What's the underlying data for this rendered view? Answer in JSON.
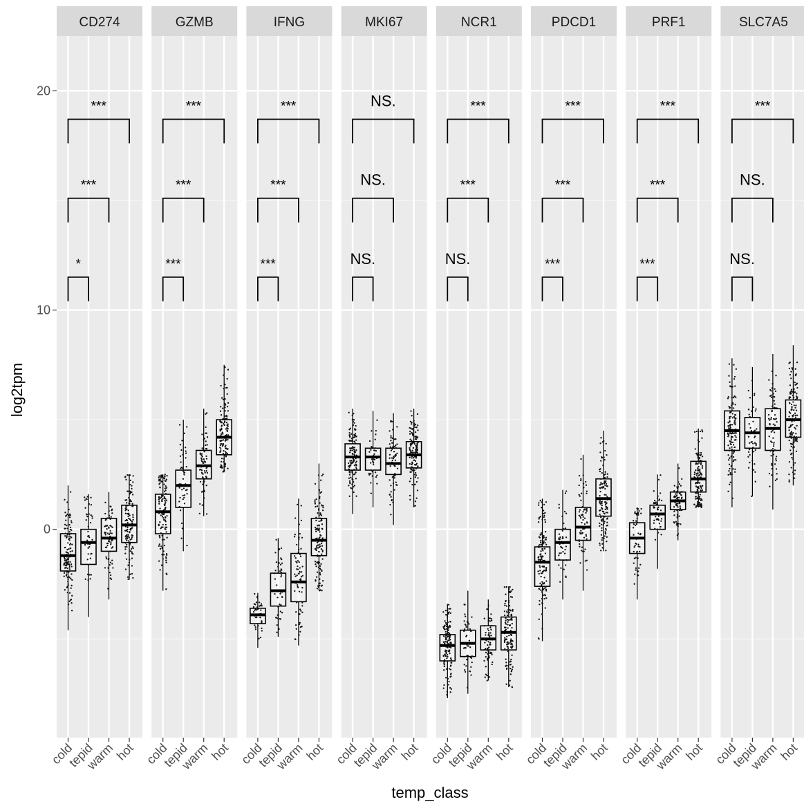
{
  "chart_data": {
    "type": "boxplot",
    "xlabel": "temp_class",
    "ylabel": "log2tpm",
    "ylim": [
      -9.5,
      22.5
    ],
    "y_ticks": [
      0,
      10,
      20
    ],
    "y_tick_labels": [
      "0",
      "10",
      "20"
    ],
    "categories": [
      "cold",
      "tepid",
      "warm",
      "hot"
    ],
    "grid": true,
    "panels": [
      {
        "gene": "CD274",
        "boxes": [
          {
            "group": "cold",
            "q1": -1.9,
            "median": -1.2,
            "q3": -0.2,
            "whisker_low": -4.6,
            "whisker_high": 2.0,
            "n": 130
          },
          {
            "group": "tepid",
            "q1": -1.6,
            "median": -0.6,
            "q3": 0.0,
            "whisker_low": -4.0,
            "whisker_high": 1.6,
            "n": 45
          },
          {
            "group": "warm",
            "q1": -1.0,
            "median": -0.4,
            "q3": 0.5,
            "whisker_low": -3.2,
            "whisker_high": 1.7,
            "n": 70
          },
          {
            "group": "hot",
            "q1": -0.6,
            "median": 0.2,
            "q3": 1.1,
            "whisker_low": -2.3,
            "whisker_high": 2.5,
            "n": 130
          }
        ],
        "comparisons": [
          {
            "groups": [
              "cold",
              "tepid"
            ],
            "label": "*"
          },
          {
            "groups": [
              "cold",
              "warm"
            ],
            "label": "***"
          },
          {
            "groups": [
              "cold",
              "hot"
            ],
            "label": "***"
          }
        ]
      },
      {
        "gene": "GZMB",
        "boxes": [
          {
            "group": "cold",
            "q1": -0.2,
            "median": 0.8,
            "q3": 1.6,
            "whisker_low": -2.8,
            "whisker_high": 2.5,
            "n": 130
          },
          {
            "group": "tepid",
            "q1": 1.0,
            "median": 2.0,
            "q3": 2.7,
            "whisker_low": -1.0,
            "whisker_high": 5.0,
            "n": 45
          },
          {
            "group": "warm",
            "q1": 2.3,
            "median": 2.9,
            "q3": 3.6,
            "whisker_low": 0.6,
            "whisker_high": 5.5,
            "n": 70
          },
          {
            "group": "hot",
            "q1": 3.4,
            "median": 4.2,
            "q3": 5.0,
            "whisker_low": 2.6,
            "whisker_high": 7.5,
            "n": 130
          }
        ],
        "comparisons": [
          {
            "groups": [
              "cold",
              "tepid"
            ],
            "label": "***"
          },
          {
            "groups": [
              "cold",
              "warm"
            ],
            "label": "***"
          },
          {
            "groups": [
              "cold",
              "hot"
            ],
            "label": "***"
          }
        ]
      },
      {
        "gene": "IFNG",
        "boxes": [
          {
            "group": "cold",
            "q1": -4.3,
            "median": -3.9,
            "q3": -3.6,
            "whisker_low": -5.4,
            "whisker_high": -2.9,
            "n": 40
          },
          {
            "group": "tepid",
            "q1": -3.5,
            "median": -2.8,
            "q3": -2.0,
            "whisker_low": -4.9,
            "whisker_high": -0.4,
            "n": 45
          },
          {
            "group": "warm",
            "q1": -3.3,
            "median": -2.4,
            "q3": -1.1,
            "whisker_low": -5.3,
            "whisker_high": 1.4,
            "n": 70
          },
          {
            "group": "hot",
            "q1": -1.2,
            "median": -0.5,
            "q3": 0.5,
            "whisker_low": -2.8,
            "whisker_high": 3.0,
            "n": 130
          }
        ],
        "comparisons": [
          {
            "groups": [
              "cold",
              "tepid"
            ],
            "label": "***"
          },
          {
            "groups": [
              "cold",
              "warm"
            ],
            "label": "***"
          },
          {
            "groups": [
              "cold",
              "hot"
            ],
            "label": "***"
          }
        ]
      },
      {
        "gene": "MKI67",
        "boxes": [
          {
            "group": "cold",
            "q1": 2.7,
            "median": 3.3,
            "q3": 3.9,
            "whisker_low": 0.7,
            "whisker_high": 5.5,
            "n": 130
          },
          {
            "group": "tepid",
            "q1": 2.7,
            "median": 3.3,
            "q3": 3.7,
            "whisker_low": 1.0,
            "whisker_high": 5.4,
            "n": 45
          },
          {
            "group": "warm",
            "q1": 2.5,
            "median": 3.0,
            "q3": 3.7,
            "whisker_low": 0.2,
            "whisker_high": 5.3,
            "n": 70
          },
          {
            "group": "hot",
            "q1": 2.8,
            "median": 3.4,
            "q3": 4.0,
            "whisker_low": 1.0,
            "whisker_high": 5.5,
            "n": 130
          }
        ],
        "comparisons": [
          {
            "groups": [
              "cold",
              "tepid"
            ],
            "label": "NS."
          },
          {
            "groups": [
              "cold",
              "warm"
            ],
            "label": "NS."
          },
          {
            "groups": [
              "cold",
              "hot"
            ],
            "label": "NS."
          }
        ]
      },
      {
        "gene": "NCR1",
        "boxes": [
          {
            "group": "cold",
            "q1": -6.0,
            "median": -5.3,
            "q3": -4.8,
            "whisker_low": -7.7,
            "whisker_high": -3.4,
            "n": 130
          },
          {
            "group": "tepid",
            "q1": -5.8,
            "median": -5.2,
            "q3": -4.6,
            "whisker_low": -7.5,
            "whisker_high": -2.8,
            "n": 45
          },
          {
            "group": "warm",
            "q1": -5.5,
            "median": -5.0,
            "q3": -4.4,
            "whisker_low": -6.9,
            "whisker_high": -3.2,
            "n": 70
          },
          {
            "group": "hot",
            "q1": -5.5,
            "median": -4.7,
            "q3": -4.0,
            "whisker_low": -7.2,
            "whisker_high": -2.6,
            "n": 130
          }
        ],
        "comparisons": [
          {
            "groups": [
              "cold",
              "tepid"
            ],
            "label": "NS."
          },
          {
            "groups": [
              "cold",
              "warm"
            ],
            "label": "***"
          },
          {
            "groups": [
              "cold",
              "hot"
            ],
            "label": "***"
          }
        ]
      },
      {
        "gene": "PDCD1",
        "boxes": [
          {
            "group": "cold",
            "q1": -2.6,
            "median": -1.5,
            "q3": -0.8,
            "whisker_low": -5.1,
            "whisker_high": 1.4,
            "n": 130
          },
          {
            "group": "tepid",
            "q1": -1.4,
            "median": -0.6,
            "q3": 0.0,
            "whisker_low": -3.2,
            "whisker_high": 1.8,
            "n": 45
          },
          {
            "group": "warm",
            "q1": -0.5,
            "median": 0.1,
            "q3": 1.0,
            "whisker_low": -2.8,
            "whisker_high": 3.4,
            "n": 70
          },
          {
            "group": "hot",
            "q1": 0.6,
            "median": 1.4,
            "q3": 2.3,
            "whisker_low": -1.0,
            "whisker_high": 4.5,
            "n": 130
          }
        ],
        "comparisons": [
          {
            "groups": [
              "cold",
              "tepid"
            ],
            "label": "***"
          },
          {
            "groups": [
              "cold",
              "warm"
            ],
            "label": "***"
          },
          {
            "groups": [
              "cold",
              "hot"
            ],
            "label": "***"
          }
        ]
      },
      {
        "gene": "PRF1",
        "boxes": [
          {
            "group": "cold",
            "q1": -1.1,
            "median": -0.4,
            "q3": 0.3,
            "whisker_low": -3.2,
            "whisker_high": 1.0,
            "n": 50
          },
          {
            "group": "tepid",
            "q1": 0.0,
            "median": 0.7,
            "q3": 1.1,
            "whisker_low": -1.8,
            "whisker_high": 2.5,
            "n": 45
          },
          {
            "group": "warm",
            "q1": 0.9,
            "median": 1.3,
            "q3": 1.7,
            "whisker_low": -0.5,
            "whisker_high": 3.0,
            "n": 70
          },
          {
            "group": "hot",
            "q1": 1.7,
            "median": 2.3,
            "q3": 3.1,
            "whisker_low": 1.0,
            "whisker_high": 4.6,
            "n": 130
          }
        ],
        "comparisons": [
          {
            "groups": [
              "cold",
              "tepid"
            ],
            "label": "***"
          },
          {
            "groups": [
              "cold",
              "warm"
            ],
            "label": "***"
          },
          {
            "groups": [
              "cold",
              "hot"
            ],
            "label": "***"
          }
        ]
      },
      {
        "gene": "SLC7A5",
        "boxes": [
          {
            "group": "cold",
            "q1": 3.6,
            "median": 4.5,
            "q3": 5.4,
            "whisker_low": 1.0,
            "whisker_high": 7.8,
            "n": 130
          },
          {
            "group": "tepid",
            "q1": 3.7,
            "median": 4.4,
            "q3": 5.1,
            "whisker_low": 1.5,
            "whisker_high": 7.4,
            "n": 45
          },
          {
            "group": "warm",
            "q1": 3.6,
            "median": 4.6,
            "q3": 5.5,
            "whisker_low": 0.9,
            "whisker_high": 8.0,
            "n": 70
          },
          {
            "group": "hot",
            "q1": 4.2,
            "median": 5.0,
            "q3": 5.9,
            "whisker_low": 2.0,
            "whisker_high": 8.4,
            "n": 130
          }
        ],
        "comparisons": [
          {
            "groups": [
              "cold",
              "tepid"
            ],
            "label": "NS."
          },
          {
            "groups": [
              "cold",
              "warm"
            ],
            "label": "NS."
          },
          {
            "groups": [
              "cold",
              "hot"
            ],
            "label": "***"
          }
        ]
      }
    ]
  }
}
